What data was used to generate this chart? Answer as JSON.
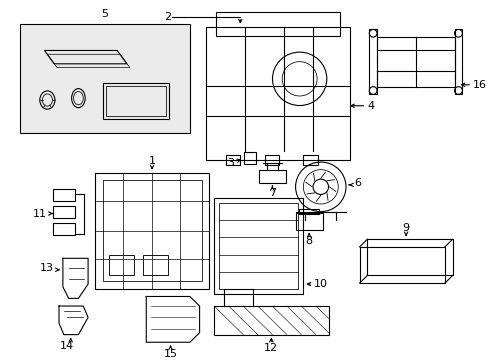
{
  "bg_color": "#ffffff",
  "line_color": "#000000",
  "fill_color": "#e8e8e8",
  "label_color": "#000000"
}
